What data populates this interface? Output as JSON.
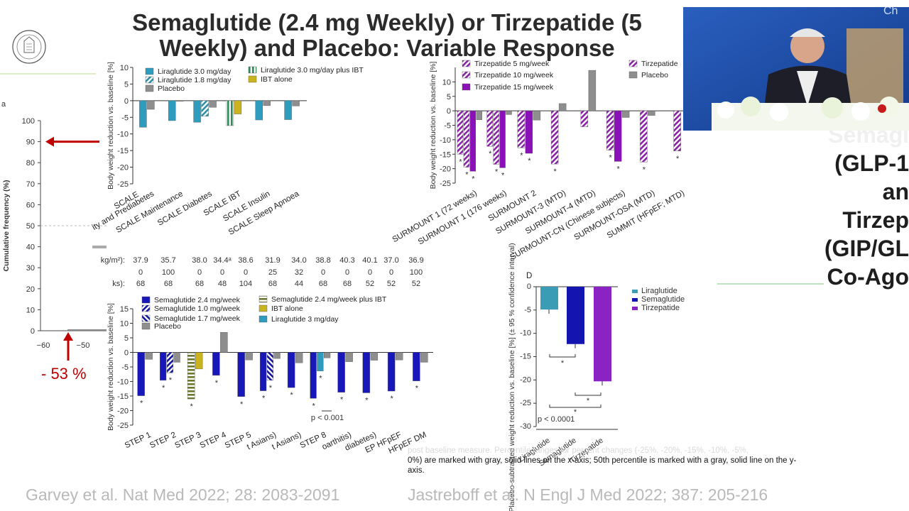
{
  "slide": {
    "title_line1": "Semaglutide (2.4 mg Weekly) or Tirzepatide (5",
    "title_line2": "Weekly) and Placebo: Variable Response",
    "citation_left": "Garvey et al. Nat Med 2022; 28: 2083-2091",
    "citation_right": "Jastreboff et al. N Engl J Med 2022; 387: 205-216",
    "caption_faded": "post baseline measure. Percentile ranges for percent changes (-25%, -20%, -15%, -10%, -5%,",
    "caption_main": "0%) are marked with gray, solid lines on the x-axis; 50th percentile is marked with a gray, solid line on the y-axis.",
    "annotation_percent": "- 53 %",
    "side_lines": [
      "Semagl",
      "(GLP-1",
      "an",
      "Tirzep",
      "(GIP/GL",
      "Co-Ago"
    ],
    "video_tag": "Ch"
  },
  "chart_data": [
    {
      "id": "cumulative",
      "type": "line",
      "ylabel": "Cumulative frequency (%)",
      "yticks": [
        0,
        10,
        20,
        30,
        40,
        50,
        60,
        70,
        80,
        90,
        100
      ],
      "xticks": [
        "−60",
        "−50"
      ],
      "arrow_target": 91,
      "arrow_x": -53,
      "stray_letter": "a"
    },
    {
      "id": "liraglutide_trials",
      "type": "bar",
      "ylabel": "Body weight reduction vs. baseline [%]",
      "ylim": [
        -25,
        10
      ],
      "yticks": [
        10,
        5,
        0,
        -5,
        -10,
        -15,
        -20,
        -25
      ],
      "legend": [
        "Liraglutide 3.0 mg/day",
        "Liraglutide 1.8 mg/day",
        "Placebo",
        "Liraglutide 3.0 mg/day plus IBT",
        "IBT alone"
      ],
      "categories": [
        "SCALE Obesity and Prediabetes",
        "SCALE Maintenance",
        "SCALE Diabetes",
        "SCALE IBT",
        "SCALE Insulin",
        "SCALE Sleep Apnoea"
      ],
      "category_labels": [
        "SCALE",
        "ity and Prediabetes",
        "SCALE Maintenance",
        "SCALE Diabetes",
        "SCALE IBT",
        "SCALE Insulin",
        "SCALE Sleep Apnoea"
      ],
      "series": [
        {
          "name": "Liraglutide 3.0 mg/day",
          "values": [
            -8.0,
            -6.0,
            -6.5,
            null,
            -5.8,
            -5.7
          ]
        },
        {
          "name": "Liraglutide 1.8 mg/day",
          "values": [
            null,
            null,
            -4.7,
            null,
            null,
            null
          ]
        },
        {
          "name": "Liraglutide 3.0 mg/day plus IBT",
          "values": [
            null,
            null,
            null,
            -7.5,
            null,
            null
          ]
        },
        {
          "name": "IBT alone",
          "values": [
            null,
            null,
            null,
            -4.0,
            null,
            null
          ]
        },
        {
          "name": "Placebo",
          "values": [
            -2.6,
            -0.2,
            -2.0,
            null,
            -1.5,
            -1.6
          ]
        }
      ]
    },
    {
      "id": "tirzepatide_trials",
      "type": "bar",
      "ylabel": "Body weight reduction vs. baseline [%]",
      "ylim": [
        -25,
        15
      ],
      "yticks": [
        10,
        5,
        0,
        -5,
        -10,
        -15,
        -20,
        -25
      ],
      "legend": [
        "Tirzepatide 5 mg/week",
        "Tirzepatide 10 mg/week",
        "Tirzepatide 15 mg/week",
        "Tirzepatide",
        "Placebo"
      ],
      "categories": [
        "SURMOUNT 1 (72 weeks)",
        "SURMOUNT 1 (176 weeks)",
        "SURMOUNT 2",
        "SURMOUNT-3 (MTD)",
        "SURMOUNT-4 (MTD)",
        "SURMOUNT-CN (Chinese subjects)",
        "SURMOUNT-OSA (MTD)",
        "SUMMIT (HFpEF; MTD)"
      ],
      "series": [
        {
          "name": "Tirzepatide 5 mg/week",
          "values": [
            -15.0,
            -12.3,
            null,
            null,
            null,
            null,
            null,
            null
          ]
        },
        {
          "name": "Tirzepatide 10 mg/week",
          "values": [
            -19.5,
            -18.5,
            -12.8,
            null,
            null,
            -13.6,
            null,
            null
          ]
        },
        {
          "name": "Tirzepatide 15 mg/week",
          "values": [
            -20.9,
            -19.7,
            -14.7,
            null,
            null,
            -17.5,
            null,
            null
          ]
        },
        {
          "name": "Tirzepatide",
          "values": [
            null,
            null,
            null,
            -18.4,
            -5.5,
            null,
            -17.7,
            -13.9
          ]
        },
        {
          "name": "Placebo",
          "values": [
            -3.1,
            -1.3,
            -3.2,
            2.5,
            14.0,
            -2.3,
            -1.6,
            null
          ]
        }
      ],
      "significance_marker": "*"
    },
    {
      "id": "baseline_table",
      "type": "table",
      "row_labels": [
        "kg/m²):",
        "",
        "ks):"
      ],
      "rows": [
        [
          "37.9",
          "35.7",
          "38.0",
          "34.4ᵃ",
          "38.6",
          "31.9",
          "34.0",
          "38.8",
          "40.3",
          "40.1",
          "37.0",
          "36.9"
        ],
        [
          "0",
          "100",
          "0",
          "0",
          "0",
          "25",
          "32",
          "0",
          "0",
          "0",
          "0",
          "100"
        ],
        [
          "68",
          "68",
          "68",
          "48",
          "104",
          "68",
          "44",
          "68",
          "68",
          "52",
          "52",
          "52"
        ]
      ]
    },
    {
      "id": "semaglutide_trials",
      "type": "bar",
      "ylabel": "Body weight reduction vs. baseline [%]",
      "ylim": [
        -25,
        15
      ],
      "yticks": [
        15,
        10,
        5,
        0,
        -5,
        -10,
        -15,
        -20,
        -25
      ],
      "legend": [
        "Semaglutide 2.4 mg/week",
        "Semaglutide 1.0 mg/week",
        "Semaglutide 1.7 mg/week",
        "Placebo",
        "Semaglutide 2.4 mg/week plus IBT",
        "IBT alone",
        "Liraglutide 3 mg/day"
      ],
      "categories": [
        "STEP 1",
        "STEP 2",
        "STEP 3",
        "STEP 4",
        "STEP 5",
        "STEP 6 (East Asians)",
        "STEP 7 (East Asians)",
        "STEP 8",
        "STEP 9 (osteoarthritis)",
        "STEP 10 (prediabetes)",
        "STEP HFpEF",
        "STEP HFpEF DM"
      ],
      "category_labels": [
        "STEP 1",
        "STEP 2",
        "STEP 3",
        "STEP 4",
        "STEP 5",
        "t Asians)",
        "t Asians)",
        "STEP 8",
        "oarthitis)",
        "diabetes)",
        "EP HFpEF",
        "HFpEF DM"
      ],
      "series": [
        {
          "name": "Semaglutide 2.4 mg/week",
          "values": [
            -14.9,
            -9.6,
            null,
            -7.9,
            -15.2,
            -13.2,
            -12.1,
            -15.8,
            -13.7,
            -13.9,
            -13.3,
            -9.8
          ]
        },
        {
          "name": "Semaglutide 1.0 mg/week",
          "values": [
            null,
            -7.0,
            null,
            null,
            null,
            null,
            null,
            null,
            null,
            null,
            null,
            null
          ]
        },
        {
          "name": "Semaglutide 1.7 mg/week",
          "values": [
            null,
            null,
            null,
            null,
            null,
            -9.6,
            null,
            null,
            null,
            null,
            null,
            null
          ]
        },
        {
          "name": "Semaglutide 2.4 mg/week plus IBT",
          "values": [
            null,
            null,
            -16.0,
            null,
            null,
            null,
            null,
            null,
            null,
            null,
            null,
            null
          ]
        },
        {
          "name": "IBT alone",
          "values": [
            null,
            null,
            -5.7,
            null,
            null,
            null,
            null,
            null,
            null,
            null,
            null,
            null
          ]
        },
        {
          "name": "Liraglutide 3 mg/day",
          "values": [
            null,
            null,
            null,
            null,
            null,
            null,
            null,
            -6.4,
            null,
            null,
            null,
            null
          ]
        },
        {
          "name": "Placebo",
          "values": [
            -2.4,
            -3.4,
            null,
            6.9,
            -2.6,
            -2.1,
            -3.6,
            -1.9,
            -3.2,
            -2.7,
            -2.6,
            -3.4
          ]
        }
      ],
      "significance_marker": "*",
      "p_value_label": "p < 0.001"
    },
    {
      "id": "panel_d",
      "type": "bar",
      "panel_label": "D",
      "ylabel": "Placebo-subtracted weight reduction vs. baseline [%] (± 95 % confidence interval)",
      "ylim": [
        -30,
        0
      ],
      "yticks": [
        0,
        -5,
        -10,
        -15,
        -20,
        -25,
        -30
      ],
      "categories": [
        "Liraglutide",
        "Semaglutide",
        "Tirzepatide"
      ],
      "values": [
        -4.9,
        -12.3,
        -20.3
      ],
      "colors": [
        "#3a9cb5",
        "#1414b0",
        "#8a22c4"
      ],
      "legend": [
        "Liraglutide",
        "Semaglutide",
        "Tirzepatide"
      ],
      "significance_marker": "*",
      "p_value_label": "p < 0.0001"
    }
  ]
}
